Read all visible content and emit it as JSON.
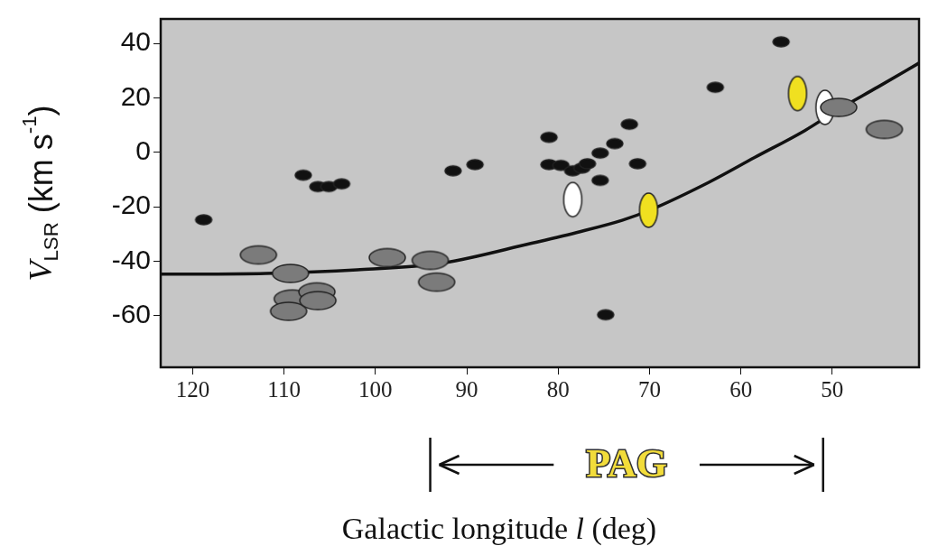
{
  "chart_data": {
    "type": "scatter",
    "x_label": [
      {
        "text": "Galactic longitude ",
        "style": "normal"
      },
      {
        "text": "l",
        "style": "italic"
      },
      {
        "text": " (deg)",
        "style": "normal"
      }
    ],
    "y_label": [
      {
        "text": "V",
        "style": "italic"
      },
      {
        "text": "LSR",
        "style": "sub"
      },
      {
        "text": " (km s",
        "style": "normal"
      },
      {
        "text": "-1",
        "style": "sup"
      },
      {
        "text": ")",
        "style": "normal"
      }
    ],
    "xlim": [
      123.5,
      40.5
    ],
    "ylim": [
      -79,
      49
    ],
    "xticks": [
      120,
      110,
      100,
      90,
      80,
      70,
      60,
      50
    ],
    "yticks": [
      40,
      20,
      0,
      -20,
      -40,
      -60
    ],
    "grid": false,
    "annotations": [
      {
        "text": "PAG",
        "x_from": 94,
        "x_to": 51,
        "color": "#f2dc3a"
      }
    ],
    "series": [
      {
        "type": "scatter",
        "color": "#7b7b7b",
        "marker": "wide_ellipse",
        "x": [
          112.8,
          109.3,
          109.1,
          109.5,
          106.4,
          106.3,
          98.7,
          94.0,
          93.3,
          49.3,
          44.3
        ],
        "values": [
          -37.7,
          -44.5,
          -53.9,
          -58.4,
          -51.3,
          -54.5,
          -38.7,
          -39.7,
          -47.7,
          16.5,
          8.4
        ]
      },
      {
        "type": "scatter",
        "color": "#111111",
        "marker": "small_ellipse",
        "x": [
          118.8,
          107.9,
          106.3,
          105.1,
          103.7,
          91.5,
          89.1,
          81.0,
          81.0,
          79.7,
          78.4,
          77.4,
          76.8,
          75.4,
          73.8,
          75.4,
          71.3,
          72.2,
          74.8,
          62.8,
          55.6
        ],
        "values": [
          -24.8,
          -8.4,
          -12.6,
          -12.6,
          -11.6,
          -6.8,
          -4.5,
          5.5,
          -4.5,
          -4.8,
          -6.8,
          -5.8,
          -4.2,
          -0.3,
          3.2,
          -10.3,
          -4.2,
          10.3,
          -59.7,
          23.9,
          40.6
        ]
      },
      {
        "type": "scatter",
        "color": "#ffffff",
        "marker": "tall_ellipse",
        "x": [
          78.4,
          50.8
        ],
        "values": [
          -17.4,
          16.5
        ]
      },
      {
        "type": "scatter",
        "color": "#f0e020",
        "marker": "tall_ellipse",
        "x": [
          70.1,
          53.8
        ],
        "values": [
          -21.3,
          21.6
        ]
      },
      {
        "type": "line",
        "color": "#111111",
        "marker": "none",
        "line_style": "solid",
        "x": [
          123.5,
          112,
          102,
          92.5,
          83,
          78,
          73,
          70,
          63.5,
          58.5,
          53,
          49.3,
          45,
          40.5
        ],
        "values": [
          -44.8,
          -44.5,
          -43.2,
          -40.6,
          -33.5,
          -29.5,
          -25.0,
          -21.3,
          -11.0,
          -1.9,
          8.0,
          15.8,
          24.0,
          32.8
        ]
      }
    ]
  }
}
